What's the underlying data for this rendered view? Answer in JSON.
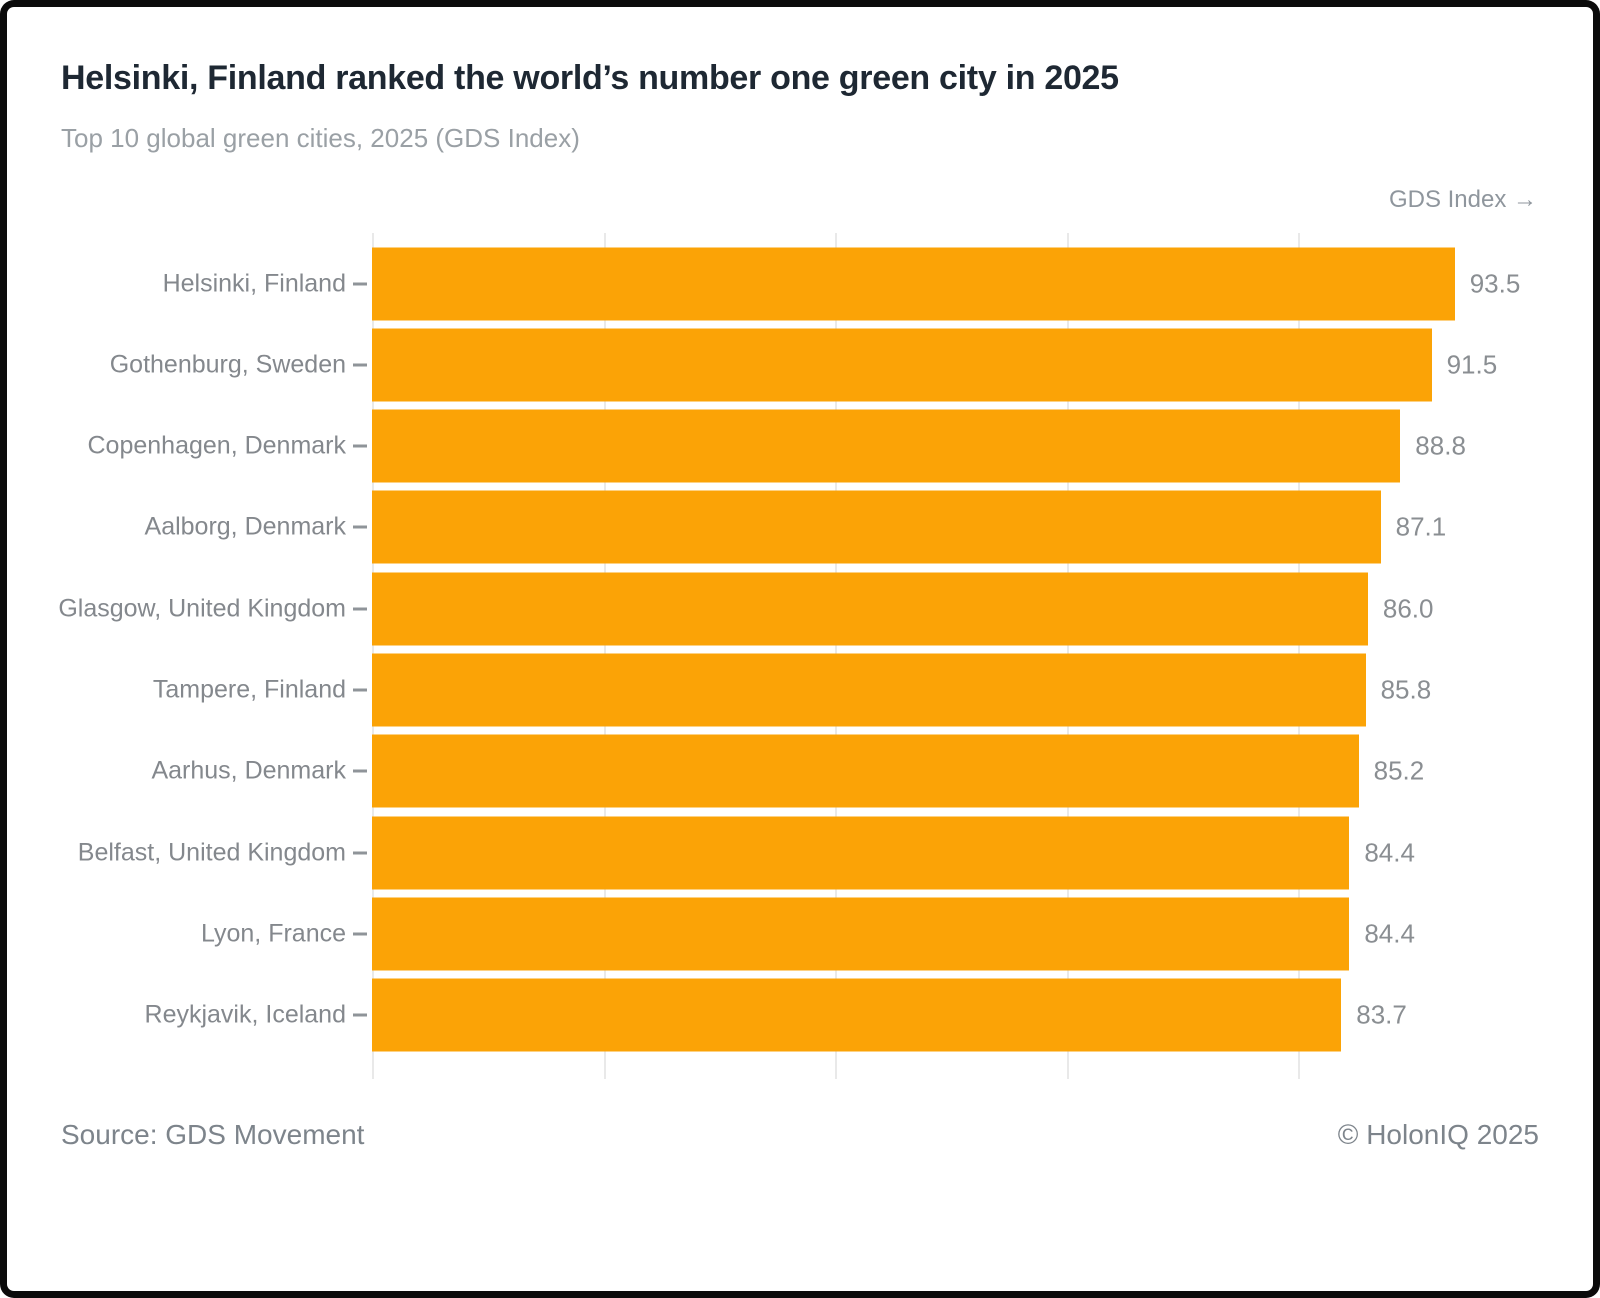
{
  "header": {
    "title": "Helsinki, Finland ranked the world’s number one green city in 2025",
    "subtitle": "Top 10 global green cities, 2025 (GDS Index)"
  },
  "footer": {
    "source": "Source: GDS Movement",
    "copyright": "© HolonIQ 2025"
  },
  "colors": {
    "bar": "#FBA306",
    "title_text": "#1E2833",
    "muted_text": "#8A8E92",
    "gridline": "#E9E9E9"
  },
  "chart_data": {
    "type": "bar",
    "orientation": "horizontal",
    "title": "Helsinki, Finland ranked the world’s number one green city in 2025",
    "subtitle": "Top 10 global green cities, 2025 (GDS Index)",
    "axis_label": "GDS Index →",
    "categories": [
      "Helsinki, Finland",
      "Gothenburg, Sweden",
      "Copenhagen, Denmark",
      "Aalborg, Denmark",
      "Glasgow, United Kingdom",
      "Tampere, Finland",
      "Aarhus, Denmark",
      "Belfast, United Kingdom",
      "Lyon, France",
      "Reykjavik, Iceland"
    ],
    "values": [
      93.5,
      91.5,
      88.8,
      87.1,
      86.0,
      85.8,
      85.2,
      84.4,
      84.4,
      83.7
    ],
    "value_labels": [
      "93.5",
      "91.5",
      "88.8",
      "87.1",
      "86.0",
      "85.8",
      "85.2",
      "84.4",
      "84.4",
      "83.7"
    ],
    "xlabel": "GDS Index",
    "ylabel": "",
    "xlim": [
      0,
      97
    ],
    "gridlines": [
      0,
      20,
      40,
      60,
      80
    ],
    "grid": "vertical-light",
    "legend": "none",
    "value_label_position": "outside-right"
  }
}
